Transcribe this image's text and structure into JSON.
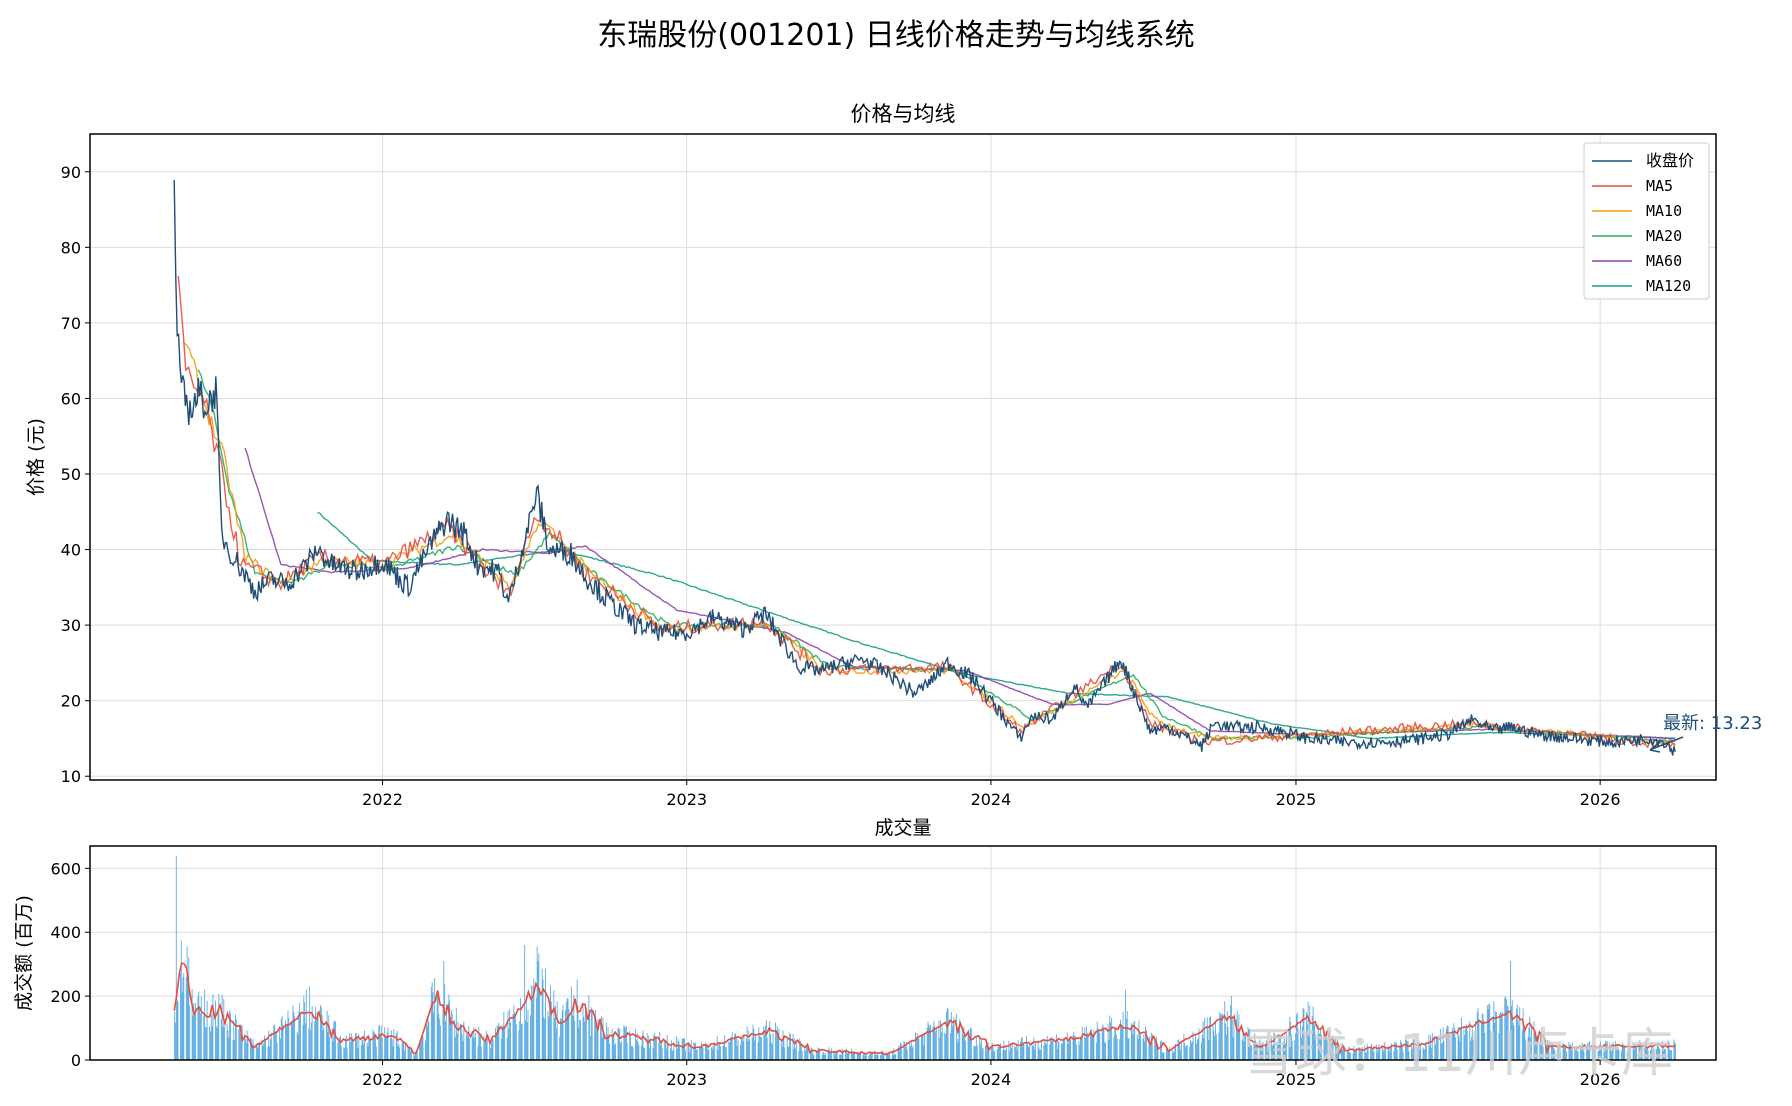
{
  "figure_title": "东瑞股份(001201) 日线价格走势与均线系统",
  "watermark": "雪球：11川卢卡库",
  "chart_data": [
    {
      "type": "line",
      "title": "价格与均线",
      "ylabel": "价格 (元)",
      "xlabel": "",
      "xlim": [
        "2021-01-15",
        "2026-05-20"
      ],
      "ylim": [
        9.5,
        95
      ],
      "yticks": [
        10,
        20,
        30,
        40,
        50,
        60,
        70,
        80,
        90
      ],
      "xticks": [
        "2022",
        "2023",
        "2024",
        "2025",
        "2026"
      ],
      "grid": true,
      "legend": [
        "收盘价",
        "MA5",
        "MA10",
        "MA20",
        "MA60",
        "MA120"
      ],
      "legend_location": "upper right",
      "annotation": "最新: 13.23",
      "colors": {
        "close": "#1f4e79",
        "MA5": "#e74c3c",
        "MA10": "#f39c12",
        "MA20": "#27ae60",
        "MA60": "#8e44ad",
        "MA120": "#16a085"
      },
      "close_series": [
        [
          "2021-04-26",
          91.2
        ],
        [
          "2021-04-28",
          73.5
        ],
        [
          "2021-05-03",
          62.0
        ],
        [
          "2021-05-08",
          60.1
        ],
        [
          "2021-05-15",
          58.5
        ],
        [
          "2021-05-25",
          60.5
        ],
        [
          "2021-06-05",
          59.0
        ],
        [
          "2021-06-15",
          61.2
        ],
        [
          "2021-06-22",
          42.0
        ],
        [
          "2021-07-01",
          40.0
        ],
        [
          "2021-07-15",
          37.5
        ],
        [
          "2021-08-01",
          34.5
        ],
        [
          "2021-08-20",
          36.0
        ],
        [
          "2021-09-10",
          35.5
        ],
        [
          "2021-10-01",
          38.0
        ],
        [
          "2021-10-15",
          40.0
        ],
        [
          "2021-11-01",
          38.0
        ],
        [
          "2021-12-01",
          37.0
        ],
        [
          "2022-01-01",
          38.5
        ],
        [
          "2022-02-01",
          35.0
        ],
        [
          "2022-03-01",
          41.0
        ],
        [
          "2022-03-20",
          44.0
        ],
        [
          "2022-04-10",
          42.0
        ],
        [
          "2022-04-25",
          38.0
        ],
        [
          "2022-05-20",
          37.0
        ],
        [
          "2022-06-01",
          33.0
        ],
        [
          "2022-06-20",
          41.0
        ],
        [
          "2022-07-05",
          47.5
        ],
        [
          "2022-07-20",
          40.0
        ],
        [
          "2022-08-15",
          39.5
        ],
        [
          "2022-09-01",
          36.5
        ],
        [
          "2022-10-01",
          33.0
        ],
        [
          "2022-11-01",
          30.0
        ],
        [
          "2022-12-01",
          29.0
        ],
        [
          "2023-01-01",
          29.0
        ],
        [
          "2023-02-01",
          31.0
        ],
        [
          "2023-03-10",
          29.5
        ],
        [
          "2023-04-05",
          31.5
        ],
        [
          "2023-04-25",
          28.0
        ],
        [
          "2023-05-15",
          24.5
        ],
        [
          "2023-06-10",
          24.0
        ],
        [
          "2023-07-10",
          25.0
        ],
        [
          "2023-08-01",
          25.5
        ],
        [
          "2023-09-01",
          23.5
        ],
        [
          "2023-10-01",
          21.0
        ],
        [
          "2023-10-20",
          22.5
        ],
        [
          "2023-11-10",
          25.0
        ],
        [
          "2023-12-10",
          23.0
        ],
        [
          "2024-01-15",
          18.0
        ],
        [
          "2024-02-05",
          15.0
        ],
        [
          "2024-02-20",
          18.0
        ],
        [
          "2024-03-15",
          17.5
        ],
        [
          "2024-04-10",
          22.0
        ],
        [
          "2024-04-25",
          19.0
        ],
        [
          "2024-05-20",
          23.0
        ],
        [
          "2024-06-05",
          25.5
        ],
        [
          "2024-06-25",
          20.0
        ],
        [
          "2024-07-10",
          16.0
        ],
        [
          "2024-08-01",
          16.5
        ],
        [
          "2024-09-10",
          14.0
        ],
        [
          "2024-09-25",
          17.0
        ],
        [
          "2024-10-15",
          16.5
        ],
        [
          "2024-11-15",
          16.5
        ],
        [
          "2024-12-15",
          16.0
        ],
        [
          "2025-01-15",
          15.0
        ],
        [
          "2025-03-01",
          14.5
        ],
        [
          "2025-04-10",
          14.5
        ],
        [
          "2025-05-20",
          14.8
        ],
        [
          "2025-07-01",
          15.5
        ],
        [
          "2025-08-01",
          17.5
        ],
        [
          "2025-08-25",
          16.0
        ],
        [
          "2025-09-15",
          16.5
        ],
        [
          "2025-10-20",
          15.5
        ],
        [
          "2025-12-01",
          15.0
        ],
        [
          "2026-01-15",
          14.5
        ],
        [
          "2026-03-01",
          15.0
        ],
        [
          "2026-03-20",
          14.5
        ],
        [
          "2026-04-01",
          13.23
        ]
      ],
      "ma_series": {
        "MA5": [
          [
            "2021-05-01",
            75.5
          ],
          [
            "2021-05-10",
            63.0
          ],
          [
            "2021-06-01",
            59.5
          ],
          [
            "2021-06-22",
            50.0
          ],
          [
            "2021-07-15",
            38.0
          ],
          [
            "2021-09-01",
            35.5
          ],
          [
            "2021-10-15",
            39.0
          ],
          [
            "2022-01-01",
            38.0
          ],
          [
            "2022-03-20",
            43.0
          ],
          [
            "2022-06-01",
            34.0
          ],
          [
            "2022-07-05",
            45.0
          ],
          [
            "2022-09-01",
            37.0
          ],
          [
            "2022-12-01",
            29.5
          ],
          [
            "2023-04-05",
            30.5
          ],
          [
            "2023-06-10",
            24.0
          ],
          [
            "2023-11-10",
            24.5
          ],
          [
            "2024-02-05",
            16.0
          ],
          [
            "2024-06-05",
            25.0
          ],
          [
            "2024-07-10",
            17.0
          ],
          [
            "2024-09-10",
            14.5
          ],
          [
            "2025-01-15",
            15.5
          ],
          [
            "2025-08-01",
            17.0
          ],
          [
            "2026-04-01",
            14.0
          ]
        ],
        "MA10": [
          [
            "2021-05-08",
            68.0
          ],
          [
            "2021-06-01",
            59.5
          ],
          [
            "2021-06-25",
            52.0
          ],
          [
            "2021-07-20",
            39.0
          ],
          [
            "2021-09-01",
            35.5
          ],
          [
            "2021-10-20",
            38.5
          ],
          [
            "2022-01-01",
            38.0
          ],
          [
            "2022-03-25",
            42.0
          ],
          [
            "2022-06-05",
            35.0
          ],
          [
            "2022-07-10",
            44.0
          ],
          [
            "2022-09-05",
            37.0
          ],
          [
            "2022-12-01",
            29.5
          ],
          [
            "2023-04-10",
            30.0
          ],
          [
            "2023-06-15",
            24.0
          ],
          [
            "2023-11-15",
            24.0
          ],
          [
            "2024-02-10",
            16.5
          ],
          [
            "2024-06-10",
            24.0
          ],
          [
            "2024-07-15",
            17.5
          ],
          [
            "2024-09-15",
            15.0
          ],
          [
            "2025-01-20",
            15.5
          ],
          [
            "2025-08-05",
            16.8
          ],
          [
            "2026-04-01",
            14.3
          ]
        ],
        "MA20": [
          [
            "2021-05-25",
            63.5
          ],
          [
            "2021-06-10",
            59.0
          ],
          [
            "2021-07-01",
            48.0
          ],
          [
            "2021-08-01",
            37.0
          ],
          [
            "2021-09-10",
            35.5
          ],
          [
            "2021-11-01",
            38.0
          ],
          [
            "2022-01-10",
            37.5
          ],
          [
            "2022-04-01",
            40.5
          ],
          [
            "2022-06-10",
            36.5
          ],
          [
            "2022-07-20",
            42.0
          ],
          [
            "2022-09-20",
            36.0
          ],
          [
            "2022-12-10",
            30.0
          ],
          [
            "2023-04-15",
            30.0
          ],
          [
            "2023-06-20",
            24.5
          ],
          [
            "2023-11-20",
            24.0
          ],
          [
            "2024-02-20",
            17.5
          ],
          [
            "2024-06-20",
            23.5
          ],
          [
            "2024-07-25",
            18.0
          ],
          [
            "2024-09-25",
            15.0
          ],
          [
            "2025-01-25",
            15.2
          ],
          [
            "2025-08-10",
            16.5
          ],
          [
            "2026-04-01",
            14.6
          ]
        ],
        "MA60": [
          [
            "2021-07-20",
            53.5
          ],
          [
            "2021-09-01",
            38.0
          ],
          [
            "2021-11-01",
            37.0
          ],
          [
            "2022-02-01",
            37.5
          ],
          [
            "2022-05-01",
            40.0
          ],
          [
            "2022-07-20",
            39.5
          ],
          [
            "2022-09-01",
            40.5
          ],
          [
            "2022-12-20",
            32.0
          ],
          [
            "2023-05-01",
            29.0
          ],
          [
            "2023-07-20",
            24.5
          ],
          [
            "2023-12-01",
            24.0
          ],
          [
            "2024-03-15",
            19.5
          ],
          [
            "2024-05-20",
            19.5
          ],
          [
            "2024-07-10",
            21.0
          ],
          [
            "2024-09-20",
            16.0
          ],
          [
            "2025-01-15",
            15.5
          ],
          [
            "2025-08-20",
            16.2
          ],
          [
            "2026-04-01",
            15.0
          ]
        ],
        "MA120": [
          [
            "2021-10-15",
            45.0
          ],
          [
            "2021-12-20",
            38.5
          ],
          [
            "2022-04-01",
            38.0
          ],
          [
            "2022-08-01",
            40.0
          ],
          [
            "2022-12-01",
            36.5
          ],
          [
            "2023-04-15",
            31.5
          ],
          [
            "2023-08-01",
            27.5
          ],
          [
            "2023-12-01",
            23.5
          ],
          [
            "2024-04-01",
            21.0
          ],
          [
            "2024-08-01",
            20.5
          ],
          [
            "2024-12-01",
            17.0
          ],
          [
            "2025-04-01",
            15.0
          ],
          [
            "2025-09-01",
            15.8
          ],
          [
            "2026-04-01",
            15.0
          ]
        ]
      }
    },
    {
      "type": "bar",
      "title": "成交量",
      "ylabel": "成交额 (百万)",
      "xlim": [
        "2021-01-15",
        "2026-05-20"
      ],
      "ylim": [
        0,
        670
      ],
      "yticks": [
        0,
        200,
        400,
        600
      ],
      "xticks": [
        "2022",
        "2023",
        "2024",
        "2025",
        "2026"
      ],
      "grid": true,
      "bar_color": "#5dade2",
      "ma_color": "#e74c3c",
      "volume_peaks": [
        [
          "2021-04-28",
          640
        ],
        [
          "2021-05-10",
          260
        ],
        [
          "2021-06-01",
          220
        ],
        [
          "2021-06-20",
          260
        ],
        [
          "2021-10-01",
          220
        ],
        [
          "2022-02-20",
          300
        ],
        [
          "2022-03-15",
          310
        ],
        [
          "2022-06-20",
          360
        ],
        [
          "2022-07-05",
          355
        ],
        [
          "2022-08-15",
          230
        ],
        [
          "2023-11-10",
          160
        ],
        [
          "2024-06-10",
          220
        ],
        [
          "2024-10-15",
          200
        ],
        [
          "2025-01-10",
          160
        ],
        [
          "2025-09-15",
          310
        ]
      ],
      "volume_ma": [
        [
          "2021-04-26",
          150
        ],
        [
          "2021-05-05",
          320
        ],
        [
          "2021-05-20",
          150
        ],
        [
          "2021-06-20",
          150
        ],
        [
          "2021-08-01",
          40
        ],
        [
          "2021-10-05",
          160
        ],
        [
          "2021-11-15",
          60
        ],
        [
          "2022-01-10",
          80
        ],
        [
          "2022-02-10",
          20
        ],
        [
          "2022-03-05",
          200
        ],
        [
          "2022-04-05",
          100
        ],
        [
          "2022-05-10",
          60
        ],
        [
          "2022-06-25",
          190
        ],
        [
          "2022-07-10",
          240
        ],
        [
          "2022-08-01",
          110
        ],
        [
          "2022-08-20",
          180
        ],
        [
          "2022-10-01",
          80
        ],
        [
          "2022-12-01",
          60
        ],
        [
          "2023-01-15",
          40
        ],
        [
          "2023-04-10",
          90
        ],
        [
          "2023-06-01",
          30
        ],
        [
          "2023-09-01",
          20
        ],
        [
          "2023-11-10",
          120
        ],
        [
          "2024-01-01",
          40
        ],
        [
          "2024-04-15",
          70
        ],
        [
          "2024-06-10",
          110
        ],
        [
          "2024-08-01",
          30
        ],
        [
          "2024-10-10",
          140
        ],
        [
          "2024-11-20",
          40
        ],
        [
          "2025-01-15",
          130
        ],
        [
          "2025-03-01",
          30
        ],
        [
          "2025-06-01",
          50
        ],
        [
          "2025-09-15",
          150
        ],
        [
          "2025-11-01",
          40
        ],
        [
          "2026-04-01",
          45
        ]
      ]
    }
  ]
}
